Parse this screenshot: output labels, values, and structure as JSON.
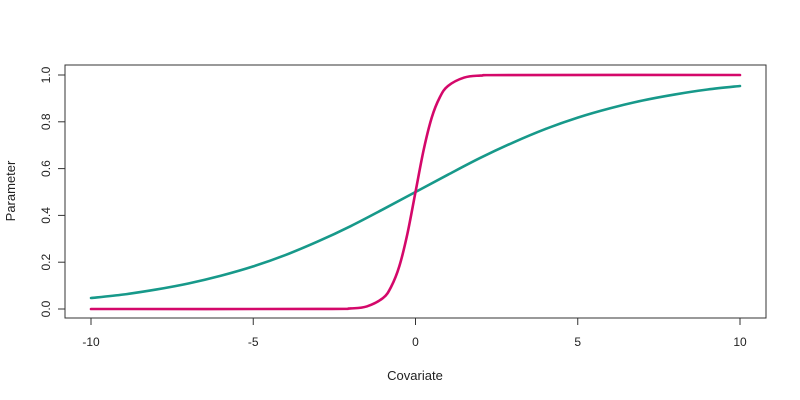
{
  "chart_data": {
    "type": "line",
    "title": "",
    "xlabel": "Covariate",
    "ylabel": "Parameter",
    "xlim": [
      -10,
      10
    ],
    "ylim": [
      0,
      1
    ],
    "grid": false,
    "legend": "none",
    "x_ticks": [
      -10,
      -5,
      0,
      5,
      10
    ],
    "x_tick_labels": [
      "-10",
      "-5",
      "0",
      "5",
      "10"
    ],
    "y_ticks": [
      0,
      0.2,
      0.4,
      0.6,
      0.8,
      1
    ],
    "y_tick_labels": [
      "0.0",
      "0.2",
      "0.4",
      "0.6",
      "0.8",
      "1.0"
    ],
    "series": [
      {
        "color": "#17998a",
        "x": [
          -10,
          -9,
          -8,
          -7,
          -6,
          -5,
          -4,
          -3,
          -2,
          -1,
          0,
          1,
          2,
          3,
          4,
          5,
          6,
          7,
          8,
          9,
          10
        ],
        "y": [
          0.047,
          0.062,
          0.083,
          0.109,
          0.142,
          0.182,
          0.231,
          0.289,
          0.354,
          0.426,
          0.5,
          0.574,
          0.646,
          0.711,
          0.769,
          0.818,
          0.858,
          0.891,
          0.917,
          0.938,
          0.953
        ]
      },
      {
        "color": "#d4086a",
        "x": [
          -10,
          -3,
          -2,
          -1.5,
          -1,
          -0.75,
          -0.5,
          -0.25,
          0,
          0.25,
          0.5,
          0.75,
          1,
          1.5,
          2,
          3,
          10
        ],
        "y": [
          0,
          0.0001,
          0.0025,
          0.011,
          0.047,
          0.095,
          0.182,
          0.321,
          0.5,
          0.679,
          0.818,
          0.905,
          0.953,
          0.989,
          0.9975,
          0.9999,
          1
        ]
      }
    ]
  }
}
